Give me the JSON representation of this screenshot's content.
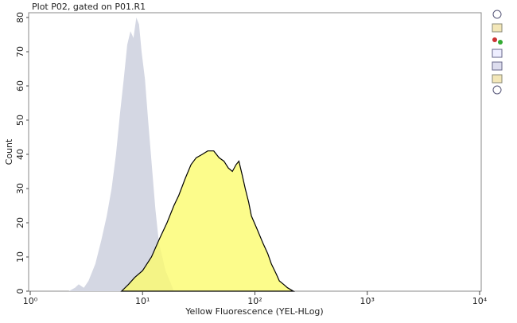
{
  "chart_data": {
    "type": "area",
    "title": "Plot P02, gated on P01.R1",
    "x_label": "Yellow Fluorescence (YEL-HLog)",
    "y_label": "Count",
    "xscale": "log",
    "xlim": [
      1,
      10000
    ],
    "xticks": [
      {
        "value": 1,
        "label": "10⁰"
      },
      {
        "value": 10,
        "label": "10¹"
      },
      {
        "value": 100,
        "label": "10²"
      },
      {
        "value": 1000,
        "label": "10³"
      },
      {
        "value": 10000,
        "label": "10⁴"
      }
    ],
    "ylim": [
      0,
      80
    ],
    "yticks": [
      0,
      10,
      20,
      30,
      40,
      50,
      60,
      70,
      80
    ],
    "grid": false,
    "series": [
      {
        "color": "#d4d7e3",
        "x": [
          2.2,
          2.5,
          2.7,
          3.0,
          3.3,
          3.8,
          4.3,
          4.8,
          5.3,
          5.8,
          6.3,
          6.8,
          7.3,
          7.8,
          8.3,
          8.8,
          9.3,
          9.8,
          10.5,
          11.2,
          12,
          13,
          14,
          15,
          16,
          17.5,
          19
        ],
        "values": [
          0,
          1,
          2,
          1,
          3,
          8,
          15,
          22,
          30,
          40,
          52,
          62,
          72,
          76,
          74,
          80,
          78,
          70,
          62,
          50,
          38,
          24,
          14,
          10,
          6,
          3,
          0
        ]
      },
      {
        "color": "#fbfb6e",
        "x": [
          6.5,
          7.5,
          8.5,
          10,
          12,
          14,
          16.5,
          19,
          21,
          24,
          27,
          30,
          34,
          38,
          43,
          48,
          53,
          58,
          63,
          68,
          72,
          77,
          82,
          88,
          93,
          105,
          118,
          130,
          140,
          155,
          165,
          180,
          195,
          220
        ],
        "values": [
          0,
          2,
          4,
          6,
          10,
          15,
          20,
          25,
          28,
          33,
          37,
          39,
          40,
          41,
          41,
          39,
          38,
          36,
          35,
          37,
          38,
          34,
          30,
          26,
          22,
          18,
          14,
          11,
          8,
          5,
          3,
          2,
          1,
          0
        ]
      }
    ]
  }
}
